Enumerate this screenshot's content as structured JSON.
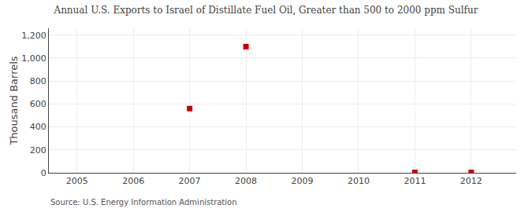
{
  "chart_data": {
    "type": "scatter",
    "title": "Annual U.S. Exports to Israel of Distillate Fuel Oil, Greater than 500 to 2000 ppm Sulfur",
    "ylabel": "Thousand Barrels",
    "annotations": [
      "Source: U.S. Energy Information Administration"
    ],
    "x": [
      2007,
      2008,
      2011,
      2012
    ],
    "values": [
      560,
      1100,
      4,
      4
    ],
    "color": "#cc0000",
    "marker": "square",
    "xlim": [
      2004.5,
      2012.8
    ],
    "ylim": [
      0,
      1260
    ],
    "xticks": [
      2005,
      2006,
      2007,
      2008,
      2009,
      2010,
      2011,
      2012
    ],
    "yticks": [
      0,
      200,
      400,
      600,
      800,
      {
        "value": 1000,
        "label": "1,000"
      },
      {
        "value": 1200,
        "label": "1,200"
      }
    ],
    "grid": true
  }
}
